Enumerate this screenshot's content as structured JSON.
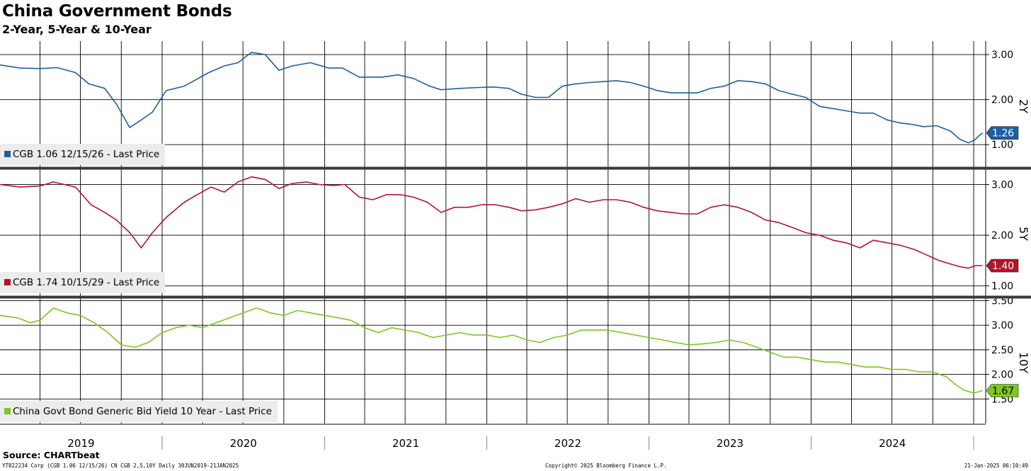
{
  "header": {
    "title": "China Government Bonds",
    "subtitle": "2-Year, 5-Year & 10-Year"
  },
  "footer": {
    "source": "Source: CHARTbeat",
    "left": "YT822234 Corp (CGB 1.06 12/15/26) CN CGB 2,5,10Y  Daily 30JUN2019-21JAN2025",
    "center": "Copyright© 2025 Bloomberg Finance L.P.",
    "right": "21-Jan-2025 06:10:49"
  },
  "chart_data": [
    {
      "type": "line",
      "axis_title": "2Y",
      "ylim": [
        0.5,
        3.3
      ],
      "yticks": [
        "1.00",
        "2.00",
        "3.00"
      ],
      "xlim": [
        "2019-01-01",
        "2025-01-28"
      ],
      "x_tick_labels": [
        "2019",
        "2020",
        "2021",
        "2022",
        "2023",
        "2024"
      ],
      "grid": true,
      "legend_position": "bottom-left",
      "series": [
        {
          "name": "CGB 1.06 12/15/26 - Last Price",
          "color": "#1f5f9e",
          "last_value_label": "1.26",
          "points": [
            [
              "2019-01-01",
              2.77
            ],
            [
              "2019-02-15",
              2.7
            ],
            [
              "2019-04-01",
              2.69
            ],
            [
              "2019-05-10",
              2.71
            ],
            [
              "2019-06-20",
              2.6
            ],
            [
              "2019-07-20",
              2.35
            ],
            [
              "2019-08-25",
              2.25
            ],
            [
              "2019-09-20",
              1.9
            ],
            [
              "2019-10-20",
              1.38
            ],
            [
              "2019-11-15",
              1.55
            ],
            [
              "2019-12-10",
              1.72
            ],
            [
              "2020-01-10",
              2.2
            ],
            [
              "2020-02-20",
              2.3
            ],
            [
              "2020-04-15",
              2.6
            ],
            [
              "2020-05-20",
              2.75
            ],
            [
              "2020-06-20",
              2.82
            ],
            [
              "2020-07-20",
              3.05
            ],
            [
              "2020-08-20",
              3.0
            ],
            [
              "2020-09-20",
              2.65
            ],
            [
              "2020-10-20",
              2.75
            ],
            [
              "2020-11-30",
              2.82
            ],
            [
              "2021-01-10",
              2.7
            ],
            [
              "2021-02-10",
              2.7
            ],
            [
              "2021-03-20",
              2.5
            ],
            [
              "2021-05-10",
              2.5
            ],
            [
              "2021-06-15",
              2.55
            ],
            [
              "2021-07-20",
              2.47
            ],
            [
              "2021-08-25",
              2.3
            ],
            [
              "2021-09-20",
              2.22
            ],
            [
              "2021-11-01",
              2.25
            ],
            [
              "2021-12-15",
              2.27
            ],
            [
              "2022-01-15",
              2.28
            ],
            [
              "2022-02-20",
              2.25
            ],
            [
              "2022-03-20",
              2.12
            ],
            [
              "2022-04-20",
              2.05
            ],
            [
              "2022-05-20",
              2.05
            ],
            [
              "2022-06-20",
              2.3
            ],
            [
              "2022-07-20",
              2.35
            ],
            [
              "2022-08-20",
              2.38
            ],
            [
              "2022-09-20",
              2.4
            ],
            [
              "2022-10-20",
              2.42
            ],
            [
              "2022-11-20",
              2.38
            ],
            [
              "2022-12-20",
              2.3
            ],
            [
              "2023-01-20",
              2.2
            ],
            [
              "2023-02-20",
              2.15
            ],
            [
              "2023-03-20",
              2.15
            ],
            [
              "2023-04-20",
              2.15
            ],
            [
              "2023-05-20",
              2.25
            ],
            [
              "2023-06-20",
              2.3
            ],
            [
              "2023-07-20",
              2.42
            ],
            [
              "2023-08-20",
              2.4
            ],
            [
              "2023-09-20",
              2.35
            ],
            [
              "2023-10-20",
              2.2
            ],
            [
              "2023-11-20",
              2.12
            ],
            [
              "2023-12-20",
              2.05
            ],
            [
              "2024-01-20",
              1.85
            ],
            [
              "2024-02-20",
              1.8
            ],
            [
              "2024-03-20",
              1.75
            ],
            [
              "2024-04-20",
              1.7
            ],
            [
              "2024-05-20",
              1.7
            ],
            [
              "2024-06-20",
              1.55
            ],
            [
              "2024-07-20",
              1.48
            ],
            [
              "2024-08-15",
              1.45
            ],
            [
              "2024-09-10",
              1.4
            ],
            [
              "2024-10-10",
              1.42
            ],
            [
              "2024-11-10",
              1.3
            ],
            [
              "2024-12-01",
              1.12
            ],
            [
              "2024-12-20",
              1.04
            ],
            [
              "2025-01-03",
              1.1
            ],
            [
              "2025-01-13",
              1.2
            ],
            [
              "2025-01-21",
              1.26
            ]
          ]
        }
      ]
    },
    {
      "type": "line",
      "axis_title": "5Y",
      "ylim": [
        0.8,
        3.3
      ],
      "yticks": [
        "1.00",
        "2.00",
        "3.00"
      ],
      "xlim": [
        "2019-01-01",
        "2025-01-28"
      ],
      "x_tick_labels": [
        "2019",
        "2020",
        "2021",
        "2022",
        "2023",
        "2024"
      ],
      "grid": true,
      "legend_position": "bottom-left",
      "series": [
        {
          "name": "CGB 1.74 10/15/29 - Last Price",
          "color": "#b3152b",
          "last_value_label": "1.40",
          "points": [
            [
              "2019-01-01",
              3.0
            ],
            [
              "2019-02-15",
              2.95
            ],
            [
              "2019-04-01",
              2.97
            ],
            [
              "2019-05-01",
              3.05
            ],
            [
              "2019-06-20",
              2.95
            ],
            [
              "2019-07-25",
              2.6
            ],
            [
              "2019-08-25",
              2.45
            ],
            [
              "2019-09-20",
              2.3
            ],
            [
              "2019-10-20",
              2.05
            ],
            [
              "2019-11-15",
              1.75
            ],
            [
              "2019-12-10",
              2.05
            ],
            [
              "2020-01-10",
              2.35
            ],
            [
              "2020-02-20",
              2.65
            ],
            [
              "2020-03-20",
              2.8
            ],
            [
              "2020-04-20",
              2.95
            ],
            [
              "2020-05-20",
              2.85
            ],
            [
              "2020-06-20",
              3.05
            ],
            [
              "2020-07-20",
              3.15
            ],
            [
              "2020-08-20",
              3.1
            ],
            [
              "2020-09-20",
              2.92
            ],
            [
              "2020-10-20",
              3.02
            ],
            [
              "2020-11-20",
              3.05
            ],
            [
              "2020-12-20",
              3.0
            ],
            [
              "2021-01-20",
              2.98
            ],
            [
              "2021-02-15",
              3.0
            ],
            [
              "2021-03-20",
              2.75
            ],
            [
              "2021-04-20",
              2.7
            ],
            [
              "2021-05-20",
              2.8
            ],
            [
              "2021-06-20",
              2.8
            ],
            [
              "2021-07-20",
              2.75
            ],
            [
              "2021-08-20",
              2.65
            ],
            [
              "2021-09-20",
              2.45
            ],
            [
              "2021-10-20",
              2.55
            ],
            [
              "2021-11-20",
              2.55
            ],
            [
              "2021-12-20",
              2.6
            ],
            [
              "2022-01-20",
              2.6
            ],
            [
              "2022-02-20",
              2.55
            ],
            [
              "2022-03-20",
              2.48
            ],
            [
              "2022-04-20",
              2.5
            ],
            [
              "2022-05-20",
              2.55
            ],
            [
              "2022-06-20",
              2.62
            ],
            [
              "2022-07-20",
              2.72
            ],
            [
              "2022-08-20",
              2.65
            ],
            [
              "2022-09-20",
              2.7
            ],
            [
              "2022-10-20",
              2.7
            ],
            [
              "2022-11-20",
              2.65
            ],
            [
              "2022-12-20",
              2.55
            ],
            [
              "2023-01-20",
              2.48
            ],
            [
              "2023-02-20",
              2.45
            ],
            [
              "2023-03-20",
              2.42
            ],
            [
              "2023-04-20",
              2.42
            ],
            [
              "2023-05-20",
              2.55
            ],
            [
              "2023-06-20",
              2.6
            ],
            [
              "2023-07-20",
              2.55
            ],
            [
              "2023-08-20",
              2.45
            ],
            [
              "2023-09-20",
              2.3
            ],
            [
              "2023-10-20",
              2.25
            ],
            [
              "2023-11-20",
              2.15
            ],
            [
              "2023-12-20",
              2.05
            ],
            [
              "2024-01-20",
              2.0
            ],
            [
              "2024-02-20",
              1.9
            ],
            [
              "2024-03-20",
              1.85
            ],
            [
              "2024-04-20",
              1.75
            ],
            [
              "2024-05-20",
              1.9
            ],
            [
              "2024-06-20",
              1.85
            ],
            [
              "2024-07-20",
              1.8
            ],
            [
              "2024-08-20",
              1.72
            ],
            [
              "2024-09-15",
              1.62
            ],
            [
              "2024-10-15",
              1.5
            ],
            [
              "2024-11-15",
              1.42
            ],
            [
              "2024-12-01",
              1.38
            ],
            [
              "2024-12-20",
              1.35
            ],
            [
              "2025-01-05",
              1.4
            ],
            [
              "2025-01-21",
              1.4
            ]
          ]
        }
      ]
    },
    {
      "type": "line",
      "axis_title": "10Y",
      "ylim": [
        1.0,
        3.55
      ],
      "yticks": [
        "1.50",
        "2.00",
        "2.50",
        "3.00",
        "3.50"
      ],
      "xlim": [
        "2019-01-01",
        "2025-01-28"
      ],
      "x_tick_labels": [
        "2019",
        "2020",
        "2021",
        "2022",
        "2023",
        "2024"
      ],
      "grid": true,
      "legend_position": "bottom-left",
      "series": [
        {
          "name": "China Govt Bond Generic Bid Yield 10 Year - Last Price",
          "color": "#7ec622",
          "last_value_label": "1.67",
          "points": [
            [
              "2019-01-01",
              3.2
            ],
            [
              "2019-02-10",
              3.15
            ],
            [
              "2019-03-10",
              3.05
            ],
            [
              "2019-04-01",
              3.1
            ],
            [
              "2019-05-01",
              3.35
            ],
            [
              "2019-06-01",
              3.25
            ],
            [
              "2019-07-01",
              3.2
            ],
            [
              "2019-08-01",
              3.05
            ],
            [
              "2019-09-01",
              2.85
            ],
            [
              "2019-10-01",
              2.6
            ],
            [
              "2019-11-01",
              2.55
            ],
            [
              "2019-12-01",
              2.65
            ],
            [
              "2020-01-01",
              2.85
            ],
            [
              "2020-02-01",
              2.95
            ],
            [
              "2020-03-01",
              3.0
            ],
            [
              "2020-04-01",
              2.95
            ],
            [
              "2020-05-01",
              3.05
            ],
            [
              "2020-06-01",
              3.15
            ],
            [
              "2020-07-01",
              3.25
            ],
            [
              "2020-08-01",
              3.35
            ],
            [
              "2020-09-01",
              3.25
            ],
            [
              "2020-10-01",
              3.2
            ],
            [
              "2020-11-01",
              3.3
            ],
            [
              "2020-12-01",
              3.25
            ],
            [
              "2021-01-01",
              3.2
            ],
            [
              "2021-02-01",
              3.15
            ],
            [
              "2021-03-01",
              3.1
            ],
            [
              "2021-04-01",
              2.95
            ],
            [
              "2021-05-01",
              2.85
            ],
            [
              "2021-06-01",
              2.95
            ],
            [
              "2021-07-01",
              2.9
            ],
            [
              "2021-08-01",
              2.85
            ],
            [
              "2021-09-01",
              2.75
            ],
            [
              "2021-10-01",
              2.8
            ],
            [
              "2021-11-01",
              2.85
            ],
            [
              "2021-12-01",
              2.8
            ],
            [
              "2022-01-01",
              2.8
            ],
            [
              "2022-02-01",
              2.75
            ],
            [
              "2022-03-01",
              2.8
            ],
            [
              "2022-04-01",
              2.7
            ],
            [
              "2022-05-01",
              2.65
            ],
            [
              "2022-06-01",
              2.75
            ],
            [
              "2022-07-01",
              2.8
            ],
            [
              "2022-08-01",
              2.9
            ],
            [
              "2022-09-01",
              2.9
            ],
            [
              "2022-10-01",
              2.9
            ],
            [
              "2022-11-01",
              2.85
            ],
            [
              "2022-12-01",
              2.8
            ],
            [
              "2023-01-01",
              2.75
            ],
            [
              "2023-02-01",
              2.7
            ],
            [
              "2023-03-01",
              2.65
            ],
            [
              "2023-04-01",
              2.6
            ],
            [
              "2023-05-01",
              2.62
            ],
            [
              "2023-06-01",
              2.65
            ],
            [
              "2023-07-01",
              2.7
            ],
            [
              "2023-08-01",
              2.65
            ],
            [
              "2023-09-01",
              2.55
            ],
            [
              "2023-10-01",
              2.45
            ],
            [
              "2023-11-01",
              2.35
            ],
            [
              "2023-12-01",
              2.35
            ],
            [
              "2024-01-01",
              2.3
            ],
            [
              "2024-02-01",
              2.25
            ],
            [
              "2024-03-01",
              2.25
            ],
            [
              "2024-04-01",
              2.2
            ],
            [
              "2024-05-01",
              2.15
            ],
            [
              "2024-06-01",
              2.15
            ],
            [
              "2024-07-01",
              2.1
            ],
            [
              "2024-08-01",
              2.1
            ],
            [
              "2024-09-01",
              2.05
            ],
            [
              "2024-10-01",
              2.05
            ],
            [
              "2024-11-01",
              1.95
            ],
            [
              "2024-11-20",
              1.8
            ],
            [
              "2024-12-10",
              1.68
            ],
            [
              "2025-01-01",
              1.62
            ],
            [
              "2025-01-21",
              1.67
            ]
          ]
        }
      ]
    }
  ]
}
